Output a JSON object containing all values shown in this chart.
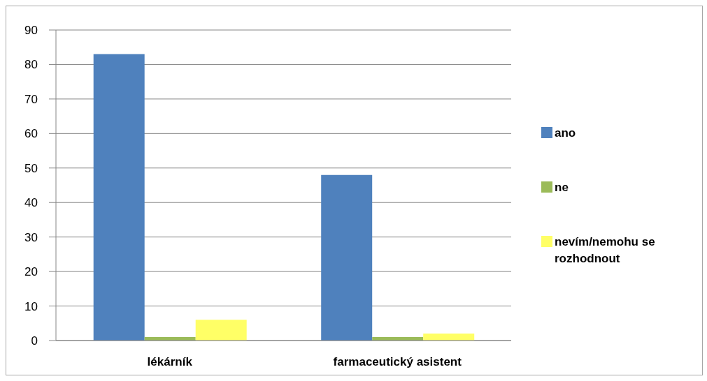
{
  "chart_data": {
    "type": "bar",
    "categories": [
      "lékárník",
      "farmaceutický asistent"
    ],
    "series": [
      {
        "name": "ano",
        "color": "#4f81bd",
        "values": [
          83,
          48
        ]
      },
      {
        "name": "ne",
        "color": "#9bbb59",
        "values": [
          1,
          1
        ]
      },
      {
        "name": "nevím/nemohu se rozhodnout",
        "color": "#ffff66",
        "values": [
          6,
          2
        ]
      }
    ],
    "ylim": [
      0,
      90
    ],
    "yticks": [
      0,
      10,
      20,
      30,
      40,
      50,
      60,
      70,
      80,
      90
    ],
    "grid": "y",
    "legend": "right"
  }
}
